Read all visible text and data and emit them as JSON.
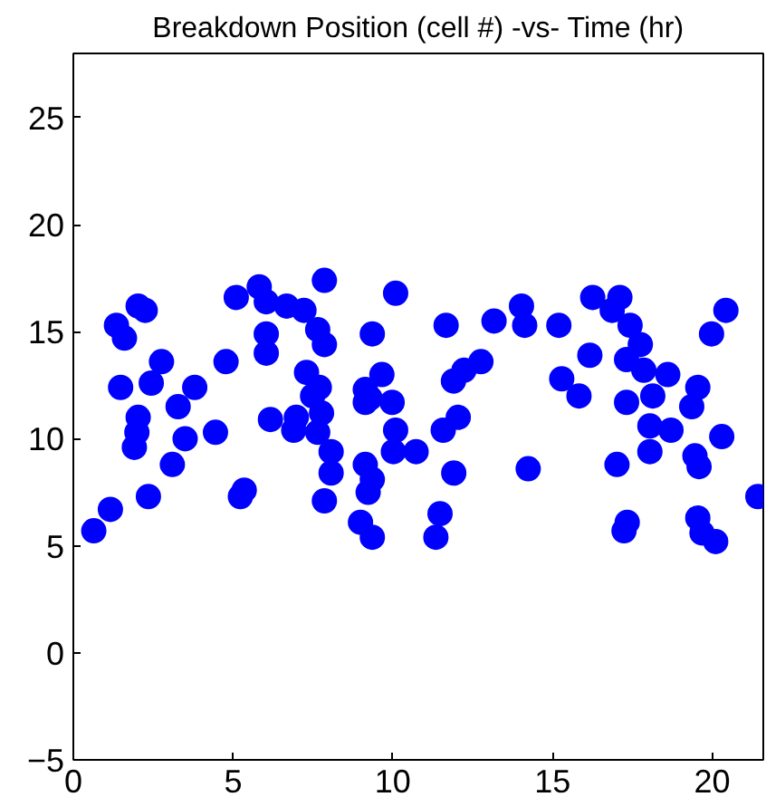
{
  "chart_data": {
    "type": "scatter",
    "title": "Breakdown Position (cell #) -vs- Time (hr)",
    "x": [
      0.64,
      1.16,
      1.35,
      1.6,
      1.48,
      2.03,
      2.25,
      2.03,
      1.99,
      1.91,
      2.35,
      2.44,
      2.76,
      3.1,
      3.28,
      3.5,
      3.8,
      4.45,
      4.78,
      5.1,
      5.23,
      5.35,
      5.82,
      6.04,
      6.04,
      6.04,
      6.17,
      6.68,
      6.9,
      6.98,
      7.22,
      7.3,
      7.65,
      7.86,
      7.86,
      7.49,
      7.7,
      7.77,
      7.65,
      8.07,
      8.07,
      7.86,
      8.99,
      9.36,
      9.14,
      9.14,
      9.29,
      9.14,
      9.36,
      9.23,
      9.36,
      9.66,
      9.98,
      10.09,
      10.02,
      10.09,
      10.73,
      11.35,
      11.48,
      11.58,
      11.67,
      11.9,
      12.05,
      11.91,
      12.23,
      12.76,
      13.17,
      14.03,
      14.13,
      14.24,
      15.2,
      15.29,
      15.83,
      16.17,
      16.26,
      16.87,
      17.11,
      17.02,
      17.24,
      17.34,
      17.32,
      17.32,
      17.43,
      17.75,
      17.86,
      18.14,
      18.05,
      18.05,
      18.71,
      18.61,
      19.36,
      19.55,
      19.46,
      19.59,
      19.55,
      19.68,
      20.11,
      19.98,
      20.43,
      20.3,
      21.43
    ],
    "values": [
      5.7,
      6.7,
      15.3,
      14.7,
      12.4,
      16.2,
      16.0,
      11.0,
      10.3,
      9.6,
      7.3,
      12.6,
      13.6,
      8.8,
      11.5,
      10.0,
      12.4,
      10.3,
      13.6,
      16.6,
      7.3,
      7.6,
      17.1,
      16.4,
      14.9,
      14.0,
      10.9,
      16.2,
      10.4,
      11.0,
      16.0,
      13.1,
      15.1,
      14.4,
      17.4,
      12.0,
      12.4,
      11.2,
      10.3,
      9.4,
      8.4,
      7.1,
      6.1,
      5.4,
      12.3,
      11.7,
      11.9,
      8.8,
      8.1,
      7.5,
      14.9,
      13.0,
      11.7,
      10.4,
      9.4,
      16.8,
      9.4,
      5.4,
      6.5,
      10.4,
      15.3,
      12.7,
      11.0,
      8.4,
      13.2,
      13.6,
      15.5,
      16.2,
      15.3,
      8.6,
      15.3,
      12.8,
      12.0,
      13.9,
      16.6,
      16.0,
      16.6,
      8.8,
      5.7,
      6.1,
      11.7,
      13.7,
      15.3,
      14.4,
      13.2,
      12.0,
      10.6,
      9.4,
      10.4,
      13.0,
      11.5,
      12.4,
      9.2,
      8.7,
      6.3,
      5.6,
      5.2,
      14.9,
      16.0,
      10.1,
      7.3
    ],
    "color": "#0000ff",
    "marker": "circle",
    "grid": false,
    "xlim": [
      0,
      21.6
    ],
    "ylim": [
      -5,
      28
    ],
    "xticks": [
      0,
      5,
      10,
      15,
      20
    ],
    "yticks": [
      -5,
      0,
      5,
      10,
      15,
      20,
      25
    ]
  }
}
